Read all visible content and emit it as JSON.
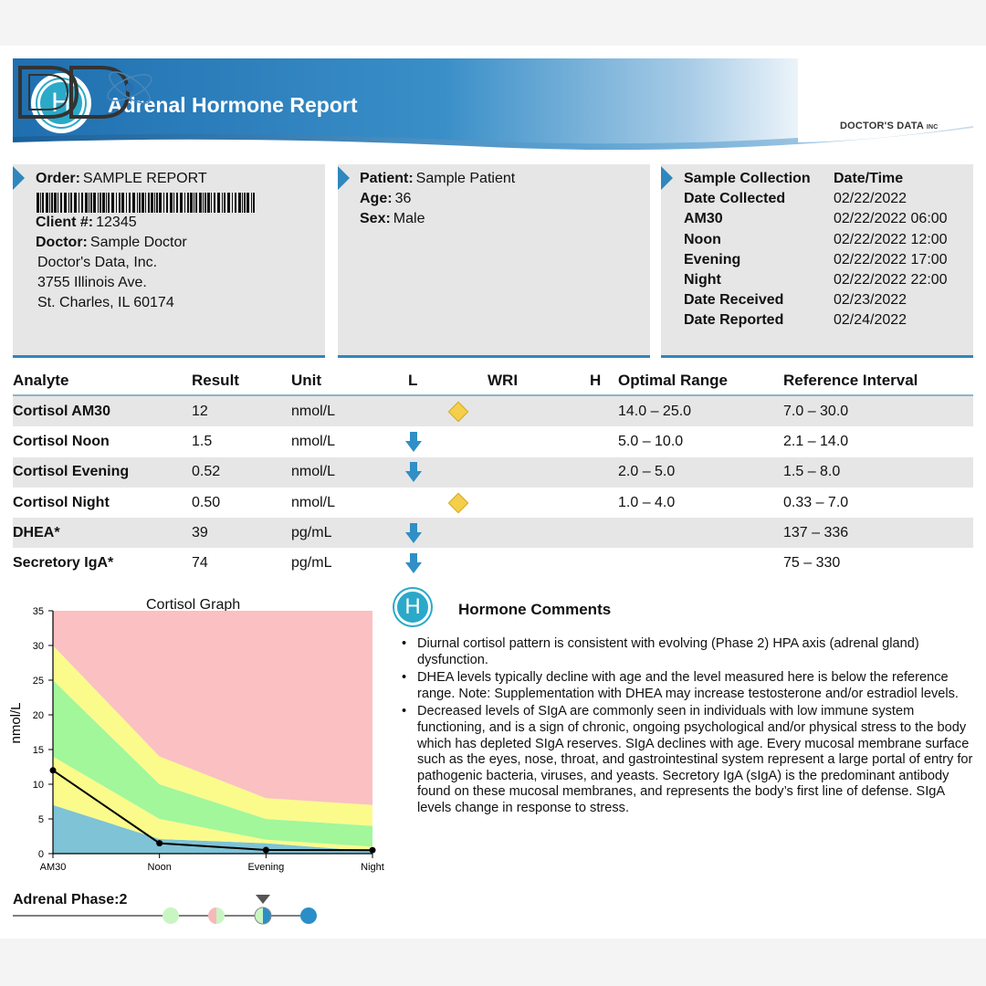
{
  "header": {
    "badge_letter": "H",
    "title": "Adrenal Hormone Report",
    "logo_text": "DOCTOR'S DATA",
    "logo_inc": "INC"
  },
  "order_panel": {
    "order_label": "Order:",
    "order_value": "SAMPLE REPORT",
    "client_label": "Client #:",
    "client_value": "12345",
    "doctor_label": "Doctor:",
    "doctor_value": "Sample Doctor",
    "address": [
      "Doctor's Data, Inc.",
      "3755 Illinois Ave.",
      "St. Charles, IL 60174"
    ]
  },
  "patient_panel": {
    "patient_label": "Patient:",
    "patient_value": "Sample Patient",
    "age_label": "Age:",
    "age_value": "36",
    "sex_label": "Sex:",
    "sex_value": "Male"
  },
  "collection_panel": {
    "rows": [
      {
        "k": "Sample Collection",
        "v": "Date/Time",
        "bold_v": true
      },
      {
        "k": "Date Collected",
        "v": "02/22/2022"
      },
      {
        "k": "AM30",
        "v": "02/22/2022 06:00"
      },
      {
        "k": "Noon",
        "v": "02/22/2022 12:00"
      },
      {
        "k": "Evening",
        "v": "02/22/2022 17:00"
      },
      {
        "k": "Night",
        "v": "02/22/2022 22:00"
      },
      {
        "k": "Date Received",
        "v": "02/23/2022"
      },
      {
        "k": "Date Reported",
        "v": "02/24/2022"
      }
    ]
  },
  "results_table": {
    "headers": {
      "analyte": "Analyte",
      "result": "Result",
      "unit": "Unit",
      "l": "L",
      "wri": "WRI",
      "h": "H",
      "optimal": "Optimal Range",
      "reference": "Reference Interval"
    },
    "rows": [
      {
        "analyte": "Cortisol AM30",
        "result": "12",
        "unit": "nmol/L",
        "marker": "diamond",
        "optimal": "14.0 – 25.0",
        "reference": "7.0 – 30.0"
      },
      {
        "analyte": "Cortisol Noon",
        "result": "1.5",
        "unit": "nmol/L",
        "marker": "low-arrow",
        "optimal": "5.0 – 10.0",
        "reference": "2.1 – 14.0"
      },
      {
        "analyte": "Cortisol Evening",
        "result": "0.52",
        "unit": "nmol/L",
        "marker": "low-arrow",
        "optimal": "2.0 – 5.0",
        "reference": "1.5 – 8.0"
      },
      {
        "analyte": "Cortisol Night",
        "result": "0.50",
        "unit": "nmol/L",
        "marker": "diamond",
        "optimal": "1.0 – 4.0",
        "reference": "0.33 – 7.0"
      },
      {
        "analyte": "DHEA*",
        "result": "39",
        "unit": "pg/mL",
        "marker": "low-arrow",
        "optimal": "",
        "reference": "137 – 336"
      },
      {
        "analyte": "Secretory IgA*",
        "result": "74",
        "unit": "pg/mL",
        "marker": "low-arrow",
        "optimal": "",
        "reference": "75 – 330"
      }
    ]
  },
  "chart_data": {
    "type": "area",
    "title": "Cortisol Graph",
    "ylabel": "nmol/L",
    "xlabel": "",
    "categories": [
      "AM30",
      "Noon",
      "Evening",
      "Night"
    ],
    "ylim": [
      0,
      35
    ],
    "yticks": [
      0,
      5,
      10,
      15,
      20,
      25,
      30,
      35
    ],
    "bands": [
      {
        "name": "low",
        "color": "#7ec3d6",
        "lower": [
          0,
          0,
          0,
          0
        ],
        "upper": [
          7.0,
          2.1,
          1.5,
          0.33
        ]
      },
      {
        "name": "reference-low",
        "color": "#fbfb8c",
        "lower": [
          7.0,
          2.1,
          1.5,
          0.33
        ],
        "upper": [
          14.0,
          5.0,
          2.0,
          1.0
        ]
      },
      {
        "name": "optimal",
        "color": "#a1f79a",
        "lower": [
          14.0,
          5.0,
          2.0,
          1.0
        ],
        "upper": [
          25.0,
          10.0,
          5.0,
          4.0
        ]
      },
      {
        "name": "reference-high",
        "color": "#fbfb8c",
        "lower": [
          25.0,
          10.0,
          5.0,
          4.0
        ],
        "upper": [
          30.0,
          14.0,
          8.0,
          7.0
        ]
      },
      {
        "name": "high",
        "color": "#fbc0c2",
        "lower": [
          30.0,
          14.0,
          8.0,
          7.0
        ],
        "upper": [
          35,
          35,
          35,
          35
        ]
      }
    ],
    "series": [
      {
        "values": [
          12,
          1.5,
          0.52,
          0.5
        ],
        "color": "#000000"
      }
    ]
  },
  "adrenal_phase": {
    "label": "Adrenal Phase:",
    "value": "2",
    "selected_index": 2,
    "dots": [
      {
        "left": "#c9f5c3",
        "right": "#c9f5c3"
      },
      {
        "left": "#f7b8b8",
        "right": "#c9f5c3"
      },
      {
        "left": "#c9f5c3",
        "right": "#2a8fc8"
      },
      {
        "left": "#2a8fc8",
        "right": "#2a8fc8"
      }
    ]
  },
  "comments": {
    "badge_letter": "H",
    "title": "Hormone Comments",
    "items": [
      "Diurnal cortisol pattern is consistent with evolving (Phase 2) HPA axis (adrenal gland) dysfunction.",
      "DHEA levels typically decline with age and the level measured here is below the reference range. Note: Supplementation with DHEA may increase testosterone and/or estradiol levels.",
      "Decreased levels of SIgA are commonly seen in individuals with low immune system functioning, and is a sign of chronic, ongoing psychological and/or physical stress to the body which has depleted SIgA reserves. SIgA declines with age. Every mucosal membrane surface such as the eyes, nose, throat, and gastrointestinal system represent a large portal of entry for pathogenic bacteria, viruses, and yeasts. Secretory IgA (sIgA) is the predominant antibody found on these mucosal membranes, and represents the body’s first line of defense. SIgA levels change in response to stress."
    ]
  },
  "colors": {
    "brand_blue": "#2f87bd",
    "badge_teal": "#2aa9c9",
    "panel_gray": "#e6e6e6",
    "diamond": "#f6cf4a",
    "arrow": "#2f8fc6"
  }
}
